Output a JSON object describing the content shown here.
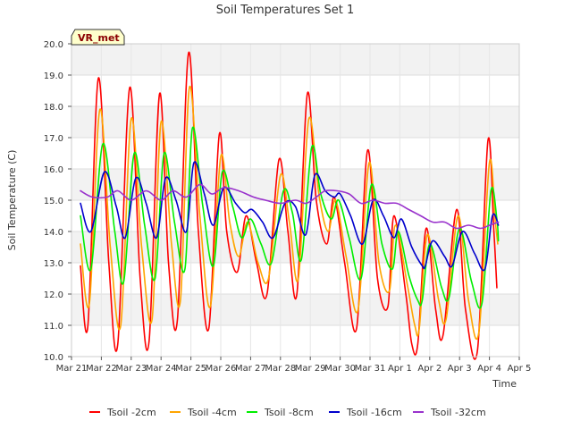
{
  "chart_data": {
    "type": "line",
    "title": "Soil Temperatures Set 1",
    "xlabel": "Time",
    "ylabel": "Soil Temperature (C)",
    "ylim": [
      10.0,
      20.0
    ],
    "xlim": [
      0,
      15
    ],
    "yticks": [
      "10.0",
      "11.0",
      "12.0",
      "13.0",
      "14.0",
      "15.0",
      "16.0",
      "17.0",
      "18.0",
      "19.0",
      "20.0"
    ],
    "xticks": [
      "Mar 21",
      "Mar 22",
      "Mar 23",
      "Mar 24",
      "Mar 25",
      "Mar 26",
      "Mar 27",
      "Mar 28",
      "Mar 29",
      "Mar 30",
      "Mar 31",
      "Apr 1",
      "Apr 2",
      "Apr 3",
      "Apr 4",
      "Apr 5"
    ],
    "grid": true,
    "legend_position": "bottom",
    "badge": "VR_met",
    "series": [
      {
        "name": "Tsoil -2cm",
        "color": "#ff0000",
        "points": [
          [
            0.3,
            12.9
          ],
          [
            0.55,
            11.0
          ],
          [
            0.9,
            18.9
          ],
          [
            1.25,
            13.0
          ],
          [
            1.55,
            10.4
          ],
          [
            1.95,
            18.6
          ],
          [
            2.3,
            12.5
          ],
          [
            2.6,
            10.5
          ],
          [
            2.95,
            18.4
          ],
          [
            3.25,
            13.0
          ],
          [
            3.55,
            11.2
          ],
          [
            3.92,
            19.7
          ],
          [
            4.25,
            14.0
          ],
          [
            4.6,
            10.9
          ],
          [
            4.95,
            17.1
          ],
          [
            5.2,
            14.0
          ],
          [
            5.55,
            12.7
          ],
          [
            5.85,
            14.5
          ],
          [
            6.2,
            13.0
          ],
          [
            6.55,
            12.0
          ],
          [
            6.95,
            16.3
          ],
          [
            7.25,
            14.0
          ],
          [
            7.55,
            12.0
          ],
          [
            7.9,
            18.4
          ],
          [
            8.2,
            15.0
          ],
          [
            8.55,
            13.6
          ],
          [
            8.8,
            15.1
          ],
          [
            9.15,
            13.0
          ],
          [
            9.55,
            10.9
          ],
          [
            9.92,
            16.6
          ],
          [
            10.25,
            12.5
          ],
          [
            10.6,
            11.6
          ],
          [
            10.8,
            14.5
          ],
          [
            11.2,
            12.0
          ],
          [
            11.4,
            10.4
          ],
          [
            11.6,
            10.4
          ],
          [
            11.88,
            14.1
          ],
          [
            12.2,
            11.5
          ],
          [
            12.45,
            10.7
          ],
          [
            12.9,
            14.7
          ],
          [
            13.2,
            11.5
          ],
          [
            13.6,
            10.2
          ],
          [
            13.95,
            16.9
          ],
          [
            14.15,
            14.0
          ],
          [
            14.25,
            12.2
          ]
        ]
      },
      {
        "name": "Tsoil -4cm",
        "color": "#ffa500",
        "points": [
          [
            0.3,
            13.6
          ],
          [
            0.6,
            11.7
          ],
          [
            0.95,
            17.9
          ],
          [
            1.3,
            13.5
          ],
          [
            1.65,
            11.0
          ],
          [
            2.0,
            17.6
          ],
          [
            2.35,
            13.5
          ],
          [
            2.7,
            11.2
          ],
          [
            3.0,
            17.5
          ],
          [
            3.35,
            13.6
          ],
          [
            3.65,
            11.8
          ],
          [
            3.95,
            18.6
          ],
          [
            4.3,
            14.5
          ],
          [
            4.65,
            11.6
          ],
          [
            5.0,
            16.4
          ],
          [
            5.3,
            14.3
          ],
          [
            5.6,
            13.2
          ],
          [
            5.9,
            14.3
          ],
          [
            6.25,
            13.0
          ],
          [
            6.6,
            12.5
          ],
          [
            7.0,
            15.8
          ],
          [
            7.3,
            14.3
          ],
          [
            7.6,
            12.5
          ],
          [
            7.95,
            17.6
          ],
          [
            8.3,
            15.1
          ],
          [
            8.6,
            14.0
          ],
          [
            8.85,
            15.0
          ],
          [
            9.2,
            13.2
          ],
          [
            9.6,
            11.5
          ],
          [
            9.97,
            16.2
          ],
          [
            10.3,
            13.0
          ],
          [
            10.65,
            12.1
          ],
          [
            10.85,
            14.2
          ],
          [
            11.25,
            12.3
          ],
          [
            11.5,
            11.0
          ],
          [
            11.65,
            10.9
          ],
          [
            11.92,
            13.9
          ],
          [
            12.3,
            11.8
          ],
          [
            12.55,
            11.2
          ],
          [
            12.95,
            14.5
          ],
          [
            13.3,
            11.8
          ],
          [
            13.65,
            10.8
          ],
          [
            14.0,
            16.2
          ],
          [
            14.2,
            14.3
          ],
          [
            14.28,
            13.6
          ]
        ]
      },
      {
        "name": "Tsoil -8cm",
        "color": "#00ee00",
        "points": [
          [
            0.3,
            14.5
          ],
          [
            0.65,
            12.8
          ],
          [
            1.05,
            16.8
          ],
          [
            1.45,
            14.0
          ],
          [
            1.75,
            12.4
          ],
          [
            2.1,
            16.5
          ],
          [
            2.45,
            14.2
          ],
          [
            2.8,
            12.5
          ],
          [
            3.1,
            16.5
          ],
          [
            3.45,
            14.3
          ],
          [
            3.8,
            12.8
          ],
          [
            4.05,
            17.3
          ],
          [
            4.4,
            14.8
          ],
          [
            4.75,
            12.9
          ],
          [
            5.05,
            15.9
          ],
          [
            5.4,
            14.8
          ],
          [
            5.7,
            13.8
          ],
          [
            6.0,
            14.4
          ],
          [
            6.35,
            13.6
          ],
          [
            6.7,
            13.0
          ],
          [
            7.1,
            15.3
          ],
          [
            7.4,
            14.6
          ],
          [
            7.7,
            13.1
          ],
          [
            8.05,
            16.7
          ],
          [
            8.35,
            15.2
          ],
          [
            8.7,
            14.4
          ],
          [
            8.95,
            15.0
          ],
          [
            9.3,
            13.8
          ],
          [
            9.7,
            12.5
          ],
          [
            10.05,
            15.5
          ],
          [
            10.4,
            13.6
          ],
          [
            10.75,
            12.8
          ],
          [
            10.95,
            14.0
          ],
          [
            11.3,
            12.6
          ],
          [
            11.6,
            11.8
          ],
          [
            11.75,
            11.8
          ],
          [
            12.0,
            13.6
          ],
          [
            12.4,
            12.2
          ],
          [
            12.65,
            11.9
          ],
          [
            13.0,
            14.1
          ],
          [
            13.4,
            12.4
          ],
          [
            13.75,
            11.7
          ],
          [
            14.05,
            15.3
          ],
          [
            14.25,
            14.4
          ],
          [
            14.3,
            13.7
          ]
        ]
      },
      {
        "name": "Tsoil -16cm",
        "color": "#0000cc",
        "points": [
          [
            0.3,
            14.9
          ],
          [
            0.65,
            14.0
          ],
          [
            1.1,
            15.9
          ],
          [
            1.5,
            14.8
          ],
          [
            1.8,
            13.8
          ],
          [
            2.15,
            15.7
          ],
          [
            2.5,
            14.9
          ],
          [
            2.85,
            13.8
          ],
          [
            3.15,
            15.7
          ],
          [
            3.5,
            15.0
          ],
          [
            3.85,
            14.0
          ],
          [
            4.1,
            16.2
          ],
          [
            4.45,
            15.2
          ],
          [
            4.75,
            14.2
          ],
          [
            5.1,
            15.4
          ],
          [
            5.5,
            14.9
          ],
          [
            5.8,
            14.6
          ],
          [
            6.05,
            14.7
          ],
          [
            6.4,
            14.3
          ],
          [
            6.75,
            13.8
          ],
          [
            7.15,
            14.9
          ],
          [
            7.5,
            14.8
          ],
          [
            7.85,
            13.9
          ],
          [
            8.15,
            15.8
          ],
          [
            8.5,
            15.3
          ],
          [
            8.8,
            15.1
          ],
          [
            9.0,
            15.2
          ],
          [
            9.35,
            14.5
          ],
          [
            9.75,
            13.6
          ],
          [
            10.1,
            15.0
          ],
          [
            10.45,
            14.5
          ],
          [
            10.8,
            13.8
          ],
          [
            11.05,
            14.4
          ],
          [
            11.4,
            13.5
          ],
          [
            11.75,
            12.9
          ],
          [
            11.85,
            12.9
          ],
          [
            12.1,
            13.7
          ],
          [
            12.5,
            13.2
          ],
          [
            12.75,
            12.9
          ],
          [
            13.1,
            14.0
          ],
          [
            13.5,
            13.3
          ],
          [
            13.85,
            12.8
          ],
          [
            14.1,
            14.5
          ],
          [
            14.3,
            14.2
          ]
        ]
      },
      {
        "name": "Tsoil -32cm",
        "color": "#9932cc",
        "points": [
          [
            0.3,
            15.3
          ],
          [
            0.7,
            15.1
          ],
          [
            1.2,
            15.1
          ],
          [
            1.55,
            15.3
          ],
          [
            2.0,
            15.0
          ],
          [
            2.5,
            15.3
          ],
          [
            3.0,
            15.0
          ],
          [
            3.4,
            15.3
          ],
          [
            3.85,
            15.1
          ],
          [
            4.3,
            15.5
          ],
          [
            4.7,
            15.2
          ],
          [
            5.1,
            15.4
          ],
          [
            5.6,
            15.3
          ],
          [
            6.1,
            15.1
          ],
          [
            6.5,
            15.0
          ],
          [
            7.0,
            14.9
          ],
          [
            7.5,
            15.0
          ],
          [
            7.85,
            14.9
          ],
          [
            8.2,
            15.1
          ],
          [
            8.5,
            15.3
          ],
          [
            8.9,
            15.3
          ],
          [
            9.3,
            15.2
          ],
          [
            9.7,
            14.9
          ],
          [
            10.1,
            15.0
          ],
          [
            10.5,
            14.9
          ],
          [
            10.9,
            14.9
          ],
          [
            11.3,
            14.7
          ],
          [
            11.7,
            14.5
          ],
          [
            12.1,
            14.3
          ],
          [
            12.5,
            14.3
          ],
          [
            12.9,
            14.1
          ],
          [
            13.3,
            14.2
          ],
          [
            13.7,
            14.1
          ],
          [
            14.0,
            14.2
          ],
          [
            14.3,
            14.3
          ]
        ]
      }
    ]
  }
}
